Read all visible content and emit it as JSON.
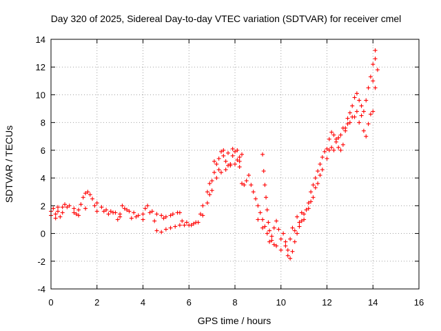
{
  "chart_data": {
    "type": "scatter",
    "title": "Day 320 of 2025, Sidereal Day-to-day VTEC variation (SDTVAR) for receiver cmel",
    "xlabel": "GPS time / hours",
    "ylabel": "SDTVAR / TECUs",
    "xlim": [
      0,
      16
    ],
    "ylim": [
      -4,
      14
    ],
    "xticks": [
      "0",
      "2",
      "4",
      "6",
      "8",
      "10",
      "12",
      "14",
      "16"
    ],
    "yticks": [
      "-4",
      "-2",
      "0",
      "2",
      "4",
      "6",
      "8",
      "10",
      "12",
      "14"
    ],
    "grid": true,
    "marker": "+",
    "color": "#ff0000",
    "series": [
      {
        "name": "SDTVAR",
        "points": [
          [
            0.0,
            1.3
          ],
          [
            0.1,
            1.8
          ],
          [
            0.2,
            1.4
          ],
          [
            0.3,
            1.6
          ],
          [
            0.4,
            1.2
          ],
          [
            0.5,
            1.9
          ],
          [
            0.6,
            2.1
          ],
          [
            0.8,
            2.0
          ],
          [
            1.0,
            1.8
          ],
          [
            1.1,
            1.4
          ],
          [
            1.2,
            1.3
          ],
          [
            1.3,
            2.1
          ],
          [
            1.4,
            2.6
          ],
          [
            1.5,
            2.9
          ],
          [
            1.6,
            3.0
          ],
          [
            1.7,
            2.8
          ],
          [
            1.8,
            2.5
          ],
          [
            2.0,
            2.2
          ],
          [
            2.2,
            1.9
          ],
          [
            2.4,
            1.7
          ],
          [
            2.6,
            1.6
          ],
          [
            2.8,
            1.5
          ],
          [
            2.9,
            1.0
          ],
          [
            3.0,
            1.4
          ],
          [
            3.1,
            2.0
          ],
          [
            3.2,
            1.8
          ],
          [
            3.4,
            1.6
          ],
          [
            3.6,
            1.5
          ],
          [
            3.8,
            1.3
          ],
          [
            4.0,
            1.4
          ],
          [
            4.1,
            1.8
          ],
          [
            4.2,
            2.0
          ],
          [
            4.4,
            1.6
          ],
          [
            4.6,
            1.4
          ],
          [
            4.8,
            1.3
          ],
          [
            5.0,
            1.2
          ],
          [
            5.2,
            1.3
          ],
          [
            5.5,
            1.5
          ],
          [
            5.7,
            0.9
          ],
          [
            5.9,
            0.8
          ],
          [
            6.1,
            0.6
          ],
          [
            6.3,
            0.8
          ],
          [
            6.5,
            1.4
          ],
          [
            6.6,
            2.0
          ],
          [
            6.8,
            3.0
          ],
          [
            6.9,
            3.6
          ],
          [
            7.0,
            3.8
          ],
          [
            7.1,
            4.4
          ],
          [
            7.2,
            5.0
          ],
          [
            7.3,
            5.4
          ],
          [
            7.4,
            5.9
          ],
          [
            7.5,
            5.6
          ],
          [
            7.6,
            5.2
          ],
          [
            7.7,
            4.9
          ],
          [
            7.8,
            5.0
          ],
          [
            7.9,
            5.6
          ],
          [
            8.0,
            5.9
          ],
          [
            8.1,
            5.3
          ],
          [
            8.2,
            4.8
          ],
          [
            8.3,
            3.6
          ],
          [
            8.4,
            3.5
          ],
          [
            8.5,
            3.8
          ],
          [
            8.6,
            4.2
          ],
          [
            8.7,
            3.5
          ],
          [
            8.8,
            3.0
          ],
          [
            8.9,
            2.5
          ],
          [
            9.0,
            2.0
          ],
          [
            9.1,
            1.5
          ],
          [
            9.2,
            1.0
          ],
          [
            9.3,
            0.5
          ],
          [
            9.4,
            0.0
          ],
          [
            9.5,
            -0.6
          ],
          [
            9.6,
            -0.2
          ],
          [
            9.7,
            0.4
          ],
          [
            9.8,
            0.9
          ],
          [
            9.9,
            0.3
          ],
          [
            10.0,
            -0.4
          ],
          [
            10.1,
            0.0
          ],
          [
            10.2,
            -0.6
          ],
          [
            10.3,
            -1.2
          ],
          [
            10.4,
            -1.8
          ],
          [
            10.5,
            -1.3
          ],
          [
            10.6,
            -0.6
          ],
          [
            10.7,
            0.0
          ],
          [
            10.8,
            0.5
          ],
          [
            10.9,
            0.9
          ],
          [
            11.0,
            1.4
          ],
          [
            11.1,
            1.7
          ],
          [
            11.2,
            2.2
          ],
          [
            11.3,
            3.0
          ],
          [
            11.4,
            3.5
          ],
          [
            11.5,
            4.0
          ],
          [
            11.6,
            4.5
          ],
          [
            11.7,
            5.0
          ],
          [
            11.8,
            5.5
          ],
          [
            11.9,
            5.9
          ],
          [
            12.0,
            6.1
          ],
          [
            12.1,
            6.8
          ],
          [
            12.2,
            7.3
          ],
          [
            12.3,
            7.1
          ],
          [
            12.4,
            6.6
          ],
          [
            12.5,
            6.2
          ],
          [
            12.6,
            6.0
          ],
          [
            12.7,
            6.4
          ],
          [
            12.8,
            7.4
          ],
          [
            12.9,
            8.3
          ],
          [
            13.0,
            8.7
          ],
          [
            13.1,
            9.2
          ],
          [
            13.2,
            9.8
          ],
          [
            13.3,
            10.1
          ],
          [
            13.4,
            9.6
          ],
          [
            13.5,
            9.2
          ],
          [
            13.6,
            8.8
          ],
          [
            13.7,
            9.6
          ],
          [
            13.8,
            10.5
          ],
          [
            13.9,
            11.3
          ],
          [
            14.0,
            12.2
          ],
          [
            14.1,
            13.2
          ],
          [
            0.2,
            1.1
          ],
          [
            0.5,
            1.5
          ],
          [
            1.0,
            1.5
          ],
          [
            1.5,
            1.8
          ],
          [
            2.0,
            1.6
          ],
          [
            2.5,
            1.4
          ],
          [
            3.0,
            1.2
          ],
          [
            3.5,
            1.1
          ],
          [
            4.0,
            1.0
          ],
          [
            4.5,
            0.9
          ],
          [
            4.6,
            0.2
          ],
          [
            4.8,
            0.1
          ],
          [
            5.0,
            0.3
          ],
          [
            5.2,
            0.4
          ],
          [
            5.4,
            0.5
          ],
          [
            5.6,
            0.6
          ],
          [
            5.8,
            0.6
          ],
          [
            6.0,
            0.6
          ],
          [
            6.2,
            0.7
          ],
          [
            6.4,
            0.8
          ],
          [
            6.6,
            1.3
          ],
          [
            6.8,
            2.2
          ],
          [
            7.0,
            3.1
          ],
          [
            7.2,
            4.0
          ],
          [
            7.4,
            4.4
          ],
          [
            7.6,
            4.6
          ],
          [
            7.8,
            4.9
          ],
          [
            8.0,
            5.0
          ],
          [
            8.2,
            5.2
          ],
          [
            8.3,
            5.7
          ],
          [
            9.2,
            5.7
          ],
          [
            9.25,
            4.5
          ],
          [
            9.3,
            3.5
          ],
          [
            9.35,
            2.6
          ],
          [
            9.4,
            1.7
          ],
          [
            9.45,
            0.8
          ],
          [
            9.5,
            0.2
          ],
          [
            9.6,
            -0.5
          ],
          [
            9.8,
            -0.9
          ],
          [
            10.0,
            -1.2
          ],
          [
            10.2,
            -0.9
          ],
          [
            10.4,
            -0.4
          ],
          [
            10.6,
            0.2
          ],
          [
            10.8,
            0.8
          ],
          [
            11.0,
            1.0
          ],
          [
            11.2,
            1.8
          ],
          [
            11.4,
            2.6
          ],
          [
            11.6,
            3.6
          ],
          [
            11.8,
            4.6
          ],
          [
            12.0,
            5.4
          ],
          [
            12.2,
            6.2
          ],
          [
            12.4,
            6.8
          ],
          [
            12.6,
            7.1
          ],
          [
            12.8,
            7.6
          ],
          [
            13.0,
            8.0
          ],
          [
            13.2,
            8.4
          ],
          [
            13.4,
            8.0
          ],
          [
            13.6,
            7.4
          ],
          [
            13.8,
            7.9
          ],
          [
            14.0,
            8.8
          ],
          [
            14.1,
            10.5
          ],
          [
            14.2,
            11.8
          ],
          [
            0.0,
            1.6
          ],
          [
            0.3,
            1.9
          ],
          [
            0.7,
            1.9
          ],
          [
            1.2,
            1.7
          ],
          [
            1.9,
            2.0
          ],
          [
            2.3,
            1.6
          ],
          [
            2.7,
            1.5
          ],
          [
            3.3,
            1.7
          ],
          [
            3.7,
            1.2
          ],
          [
            4.3,
            1.5
          ],
          [
            4.9,
            1.1
          ],
          [
            5.3,
            1.4
          ],
          [
            5.6,
            1.5
          ],
          [
            6.9,
            2.8
          ],
          [
            7.1,
            5.2
          ],
          [
            7.3,
            4.6
          ],
          [
            7.5,
            6.0
          ],
          [
            7.7,
            5.8
          ],
          [
            7.9,
            6.1
          ],
          [
            8.1,
            6.0
          ],
          [
            8.2,
            5.5
          ],
          [
            9.0,
            1.0
          ],
          [
            9.2,
            0.4
          ],
          [
            9.7,
            -0.8
          ],
          [
            10.3,
            -1.6
          ],
          [
            10.5,
            0.4
          ],
          [
            10.7,
            1.2
          ],
          [
            10.9,
            1.5
          ],
          [
            11.3,
            2.3
          ],
          [
            11.5,
            3.3
          ],
          [
            11.7,
            4.2
          ],
          [
            12.1,
            6.0
          ],
          [
            12.3,
            6.0
          ],
          [
            12.5,
            6.9
          ],
          [
            12.7,
            7.6
          ],
          [
            12.9,
            7.9
          ],
          [
            13.1,
            8.4
          ],
          [
            13.3,
            8.8
          ],
          [
            13.5,
            8.5
          ],
          [
            13.7,
            7.0
          ],
          [
            13.9,
            8.6
          ],
          [
            14.0,
            11.0
          ],
          [
            14.1,
            12.6
          ]
        ]
      }
    ]
  }
}
